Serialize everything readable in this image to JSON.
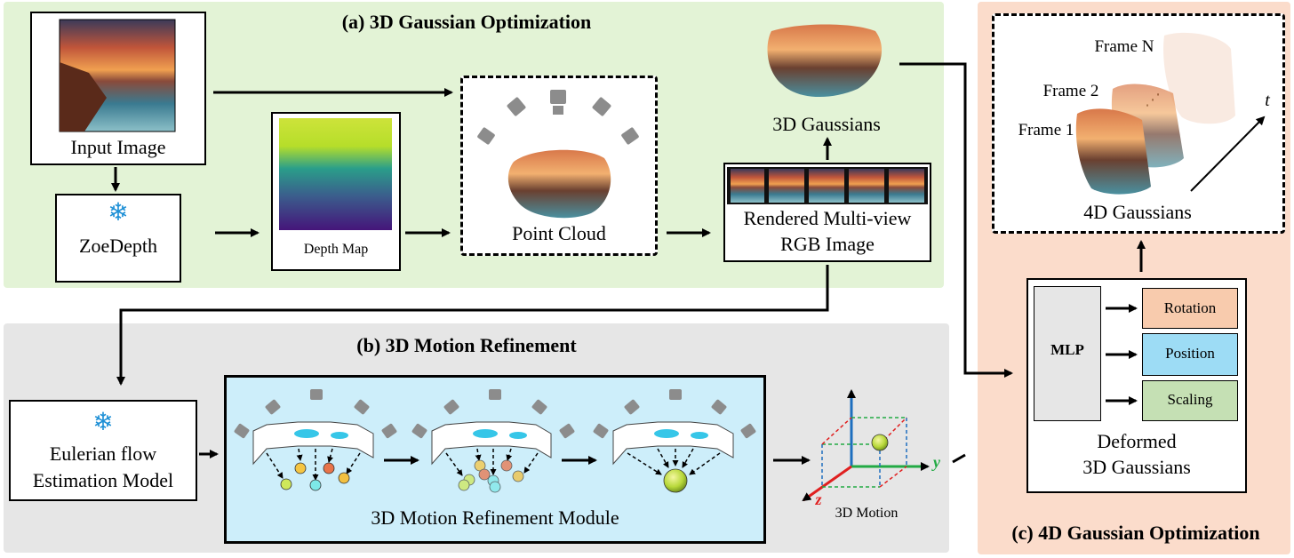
{
  "panels": {
    "a_title": "(a) 3D Gaussian Optimization",
    "b_title": "(b) 3D Motion Refinement",
    "c_title": "(c) 4D Gaussian Optimization"
  },
  "a": {
    "input_image": "Input Image",
    "zoedepth": "ZoeDepth",
    "depth_map": "Depth Map",
    "point_cloud": "Point Cloud",
    "gaussians_3d": "3D Gaussians",
    "rendered_line1": "Rendered Multi-view",
    "rendered_line2": "RGB Image"
  },
  "b": {
    "eulerian_line1": "Eulerian flow",
    "eulerian_line2": "Estimation Model",
    "module": "3D Motion Refinement Module",
    "motion": "3D Motion",
    "axis_y": "y",
    "axis_z": "z"
  },
  "c": {
    "frame_n": "Frame N",
    "frame_2": "Frame 2",
    "frame_1": "Frame 1",
    "dots": "⋰",
    "t_axis": "t",
    "gaussians_4d": "4D Gaussians",
    "mlp": "MLP",
    "rotation": "Rotation",
    "position": "Position",
    "scaling": "Scaling",
    "deformed_line1": "Deformed",
    "deformed_line2": "3D Gaussians"
  },
  "colors": {
    "panel_a": "#e3f3d6",
    "panel_b": "#e6e6e6",
    "panel_c": "#fbdccb",
    "module_bg": "#cdeefa",
    "rotation": "#f8cbad",
    "position": "#9ddcf5",
    "scaling": "#c5e0b4",
    "mlp": "#e6e6e6",
    "axis_x_green": "#22aa44",
    "axis_y_blue": "#1e6fbf",
    "axis_z_red": "#e02020"
  },
  "icons": [
    "snowflake-icon",
    "camera-icon",
    "landscape-image",
    "depth-map-image",
    "gaussian-sphere"
  ]
}
